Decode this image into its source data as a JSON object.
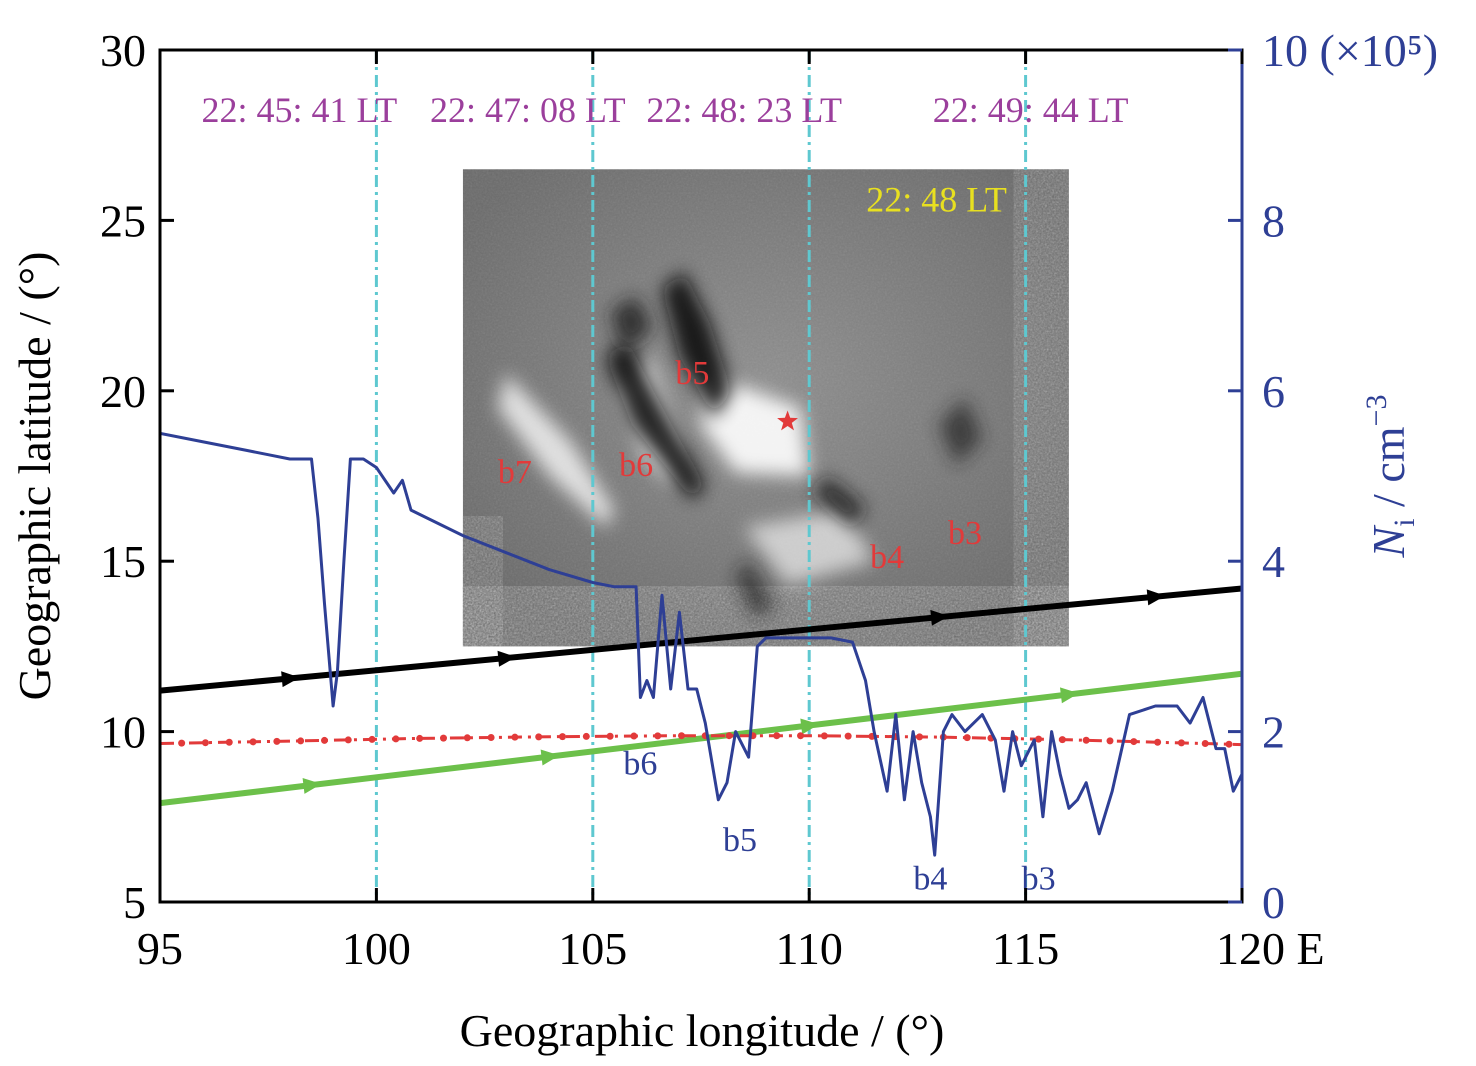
{
  "chart_data": {
    "type": "line",
    "xlabel": "Geographic longitude / (°)",
    "ylabel": "Geographic latitude / (°)",
    "y2label_main": "N",
    "y2label_sub": "i",
    "y2label_unit": " / cm",
    "y2label_exp": "−3",
    "xlim": [
      95,
      120
    ],
    "ylim": [
      5,
      30
    ],
    "y2lim": [
      0,
      10
    ],
    "x_ticks": [
      "95",
      "100",
      "105",
      "110",
      "115",
      "120 E"
    ],
    "y_ticks": [
      "5",
      "10",
      "15",
      "20",
      "25",
      "30"
    ],
    "y2_ticks": [
      "0",
      "2",
      "4",
      "6",
      "8",
      "10 (×10⁵)"
    ],
    "lt_markers": [
      {
        "lon": 100,
        "label": "22: 45: 41 LT"
      },
      {
        "lon": 105,
        "label": "22: 47: 08 LT"
      },
      {
        "lon": 110,
        "label": "22: 48: 23 LT"
      },
      {
        "lon": 115,
        "label": "22: 49: 44 LT"
      }
    ],
    "airglow_image": {
      "lon_range": [
        102,
        116
      ],
      "lat_range": [
        12.5,
        26.5
      ],
      "time_label": "22: 48 LT",
      "star": {
        "lon": 109.5,
        "lat": 19.1
      },
      "bubble_labels": [
        {
          "name": "b7",
          "lon": 103.2,
          "lat": 17.3
        },
        {
          "name": "b6",
          "lon": 106.0,
          "lat": 17.5
        },
        {
          "name": "b5",
          "lon": 107.3,
          "lat": 20.2
        },
        {
          "name": "b4",
          "lon": 111.8,
          "lat": 14.8
        },
        {
          "name": "b3",
          "lon": 113.6,
          "lat": 15.5
        }
      ]
    },
    "series": [
      {
        "name": "",
        "color": "#000000",
        "axis": "latitude",
        "x": [
          95,
          120
        ],
        "y": [
          11.2,
          14.2
        ]
      },
      {
        "name": "",
        "color": "#6cc04a",
        "axis": "latitude",
        "x": [
          95,
          120
        ],
        "y": [
          7.9,
          11.7
        ]
      },
      {
        "name": "",
        "color": "#e23a3a",
        "style": "dash-dot",
        "axis": "latitude",
        "x": [
          95,
          98,
          101,
          104,
          107,
          110,
          113,
          116,
          120
        ],
        "y": [
          9.65,
          9.72,
          9.8,
          9.85,
          9.88,
          9.88,
          9.84,
          9.76,
          9.62
        ]
      },
      {
        "name": "",
        "color": "#2e3f95",
        "axis": "Ni",
        "x": [
          95,
          96,
          97,
          97.5,
          98,
          98.5,
          98.65,
          98.8,
          99,
          99.1,
          99.25,
          99.4,
          99.7,
          100,
          100.4,
          100.6,
          100.8,
          101.2,
          102,
          103,
          104,
          105,
          105.5,
          106,
          106.1,
          106.25,
          106.4,
          106.6,
          106.8,
          107,
          107.2,
          107.4,
          107.6,
          107.9,
          108.1,
          108.3,
          108.6,
          108.8,
          109,
          109.5,
          110,
          110.5,
          111,
          111.3,
          111.5,
          111.8,
          112,
          112.2,
          112.4,
          112.6,
          112.8,
          112.9,
          113.1,
          113.3,
          113.6,
          114,
          114.3,
          114.5,
          114.7,
          114.9,
          115.2,
          115.4,
          115.6,
          115.8,
          116,
          116.2,
          116.4,
          116.7,
          117,
          117.4,
          118,
          118.5,
          118.8,
          119.1,
          119.4,
          119.6,
          119.8,
          120
        ],
        "y": [
          5.5,
          5.4,
          5.3,
          5.25,
          5.2,
          5.2,
          4.5,
          3.5,
          2.3,
          2.7,
          4.0,
          5.2,
          5.2,
          5.1,
          4.8,
          4.95,
          4.6,
          4.5,
          4.3,
          4.1,
          3.9,
          3.75,
          3.7,
          3.7,
          2.4,
          2.6,
          2.4,
          3.6,
          2.5,
          3.4,
          2.5,
          2.5,
          2.1,
          1.2,
          1.4,
          2.0,
          1.7,
          3.0,
          3.1,
          3.1,
          3.1,
          3.1,
          3.05,
          2.6,
          2.0,
          1.3,
          2.2,
          1.2,
          2.0,
          1.4,
          1.0,
          0.55,
          2.0,
          2.2,
          2.0,
          2.2,
          1.9,
          1.3,
          2.0,
          1.6,
          1.9,
          1.0,
          2.0,
          1.5,
          1.1,
          1.2,
          1.4,
          0.8,
          1.3,
          2.2,
          2.3,
          2.3,
          2.1,
          2.4,
          1.8,
          1.8,
          1.3,
          1.5
        ]
      }
    ],
    "ni_bubble_labels": [
      {
        "name": "b6",
        "lon": 106.1,
        "ni": 1.45
      },
      {
        "name": "b5",
        "lon": 108.4,
        "ni": 0.55
      },
      {
        "name": "b4",
        "lon": 112.8,
        "ni": 0.1
      },
      {
        "name": "b3",
        "lon": 115.3,
        "ni": 0.1
      }
    ],
    "colors": {
      "axis": "#000000",
      "right_axis": "#2e3f95",
      "lt_line": "#5ec8d0",
      "lt_text": "#9b3f9c",
      "image_label": "#e8e020",
      "bubble_red": "#e23a3a"
    }
  }
}
